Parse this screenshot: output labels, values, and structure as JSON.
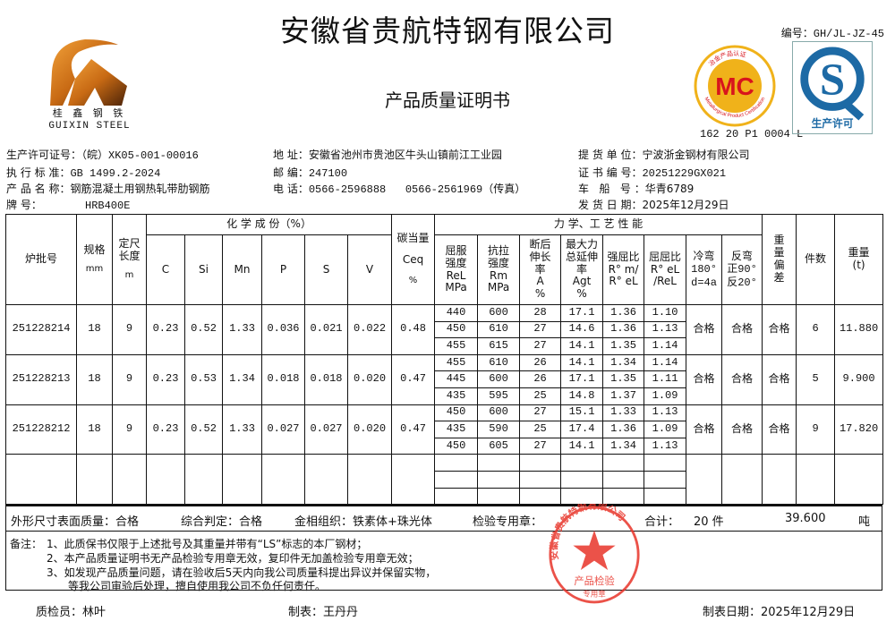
{
  "header": {
    "company": "安徽省贵航特钢有限公司",
    "doc_title": "产品质量证明书",
    "doc_number": "编号：GH/JL-JZ-45",
    "logo_cn": "桂 鑫 钢 铁",
    "logo_en": "GUIXIN STEEL",
    "mc_logo_text": "MC",
    "mc_logo_ring_cn": "冶金产品认证",
    "mc_logo_ring_en": "Metallurgical Product Certification",
    "mc_code": "162 20 P1 0004 L",
    "qs_logo_text": "生产许可",
    "colors": {
      "mc_red": "#d8141c",
      "mc_gold": "#f0b21a",
      "qs_blue": "#1d6aa5",
      "stamp_red": "#e8342a"
    }
  },
  "info": {
    "license_label": "生产许可证号：",
    "license": "（皖）XK05-001-00016",
    "standard_label": "执 行 标 准：",
    "standard": "GB 1499.2-2024",
    "product_label": "产 品 名 称：",
    "product": "钢筋混凝土用钢热轧带肋钢筋",
    "grade_label": "牌       号：",
    "grade": "HRB400E",
    "address_label": "地   址：",
    "address": "安徽省池州市贵池区牛头山镇前江工业园",
    "postcode_label": "邮   编：",
    "postcode": "247100",
    "phone_label": "电   话：",
    "phone": "0566-2596888   0566-2561969（传真）",
    "consignee_label": "提 货 单 位：",
    "consignee": "宁波浙金钢材有限公司",
    "cert_no_label": "证 书 编 号：",
    "cert_no": "20251229GX021",
    "vehicle_label": "车   船   号 ：",
    "vehicle": "华青6789",
    "ship_date_label": "发 货 日 期：",
    "ship_date": "2025年12月29日"
  },
  "table": {
    "headers": {
      "batch": "炉批号",
      "size": "规格",
      "size_unit": "mm",
      "length": "定尺长度",
      "length_unit": "m",
      "chem_group": "化 学 成 份（%）",
      "chem": [
        "C",
        "Si",
        "Mn",
        "P",
        "S",
        "V"
      ],
      "ceq": "碳当量",
      "ceq_sym": "Ceq",
      "ceq_unit": "%",
      "mech_group": "力 学、工 艺 性 能",
      "mech": [
        "屈服强度ReLMPa",
        "抗拉强度RmMPa",
        "断后伸长率A%",
        "最大力总延伸率Agt%",
        "强屈比R° m/R° eL",
        "屈屈比R° eL/ReL",
        "冷弯180°d=4a",
        "反弯正90°反20°"
      ],
      "mech_lines": [
        [
          "屈服",
          "强度",
          "ReL",
          "MPa"
        ],
        [
          "抗拉",
          "强度",
          "Rm",
          "MPa"
        ],
        [
          "断后",
          "伸长",
          "率",
          "A",
          "%"
        ],
        [
          "最大力",
          "总延伸",
          "率",
          "Agt",
          "%"
        ],
        [
          "强屈比",
          "R° m/",
          "R° eL"
        ],
        [
          "屈屈比",
          "R° eL",
          "/ReL"
        ],
        [
          "冷弯",
          "180°",
          "d=4a"
        ],
        [
          "反弯",
          "正90°",
          "反20°"
        ]
      ],
      "weight_dev": "重量偏差",
      "pieces": "件数",
      "weight": "重量",
      "weight_unit": "(t)"
    },
    "rows": [
      {
        "batch": "251228214",
        "size": "18",
        "length": "9",
        "chem": [
          "0.23",
          "0.52",
          "1.33",
          "0.036",
          "0.021",
          "0.022"
        ],
        "ceq": "0.48",
        "mech": [
          [
            "440",
            "600",
            "28",
            "17.1",
            "1.36",
            "1.10"
          ],
          [
            "450",
            "610",
            "27",
            "14.6",
            "1.36",
            "1.13"
          ],
          [
            "455",
            "615",
            "27",
            "14.1",
            "1.35",
            "1.14"
          ]
        ],
        "cold_bend": "合格",
        "rebend": "合格",
        "weight_dev": "合格",
        "pieces": "6",
        "weight": "11.880"
      },
      {
        "batch": "251228213",
        "size": "18",
        "length": "9",
        "chem": [
          "0.23",
          "0.53",
          "1.34",
          "0.018",
          "0.018",
          "0.020"
        ],
        "ceq": "0.47",
        "mech": [
          [
            "455",
            "610",
            "26",
            "14.1",
            "1.34",
            "1.14"
          ],
          [
            "445",
            "600",
            "26",
            "17.1",
            "1.35",
            "1.11"
          ],
          [
            "435",
            "595",
            "25",
            "14.8",
            "1.37",
            "1.09"
          ]
        ],
        "cold_bend": "合格",
        "rebend": "合格",
        "weight_dev": "合格",
        "pieces": "5",
        "weight": "9.900"
      },
      {
        "batch": "251228212",
        "size": "18",
        "length": "9",
        "chem": [
          "0.23",
          "0.52",
          "1.33",
          "0.027",
          "0.027",
          "0.020"
        ],
        "ceq": "0.47",
        "mech": [
          [
            "450",
            "600",
            "27",
            "15.1",
            "1.33",
            "1.13"
          ],
          [
            "435",
            "590",
            "25",
            "17.4",
            "1.36",
            "1.09"
          ],
          [
            "450",
            "605",
            "27",
            "14.1",
            "1.34",
            "1.13"
          ]
        ],
        "cold_bend": "合格",
        "rebend": "合格",
        "weight_dev": "合格",
        "pieces": "9",
        "weight": "17.820"
      }
    ]
  },
  "summary": {
    "appearance": "外形尺寸表面质量：合格",
    "overall": "综合判定：合格",
    "metallography": "金相组织：铁素体+珠光体",
    "stamp_label": "检验专用章：",
    "total_label": "合计：",
    "total_pieces": "20 件",
    "total_weight": "39.600",
    "weight_unit": "吨"
  },
  "remarks": {
    "label": "备注：",
    "items": [
      "1、此质保书仅限于上述批号及其重量并带有“LS”标志的本厂钢材；",
      "2、本产品质量证明书无产品检验专用章无效，复印件无加盖检验专用章无效；",
      "3、如发现产品质量问题，请在验收后5天内向我公司质量科提出异议并保留实物，",
      "等我公司审验后处理，擅自使用我公司不负任何责任。"
    ]
  },
  "stamp": {
    "ring": "安徽省贵航特钢有限公司",
    "line1": "产品检验",
    "line2": "专用章"
  },
  "footer": {
    "inspector": "质检员：林叶",
    "preparer": "制表：王丹丹",
    "date": "制表日期：2025年12月29日"
  }
}
